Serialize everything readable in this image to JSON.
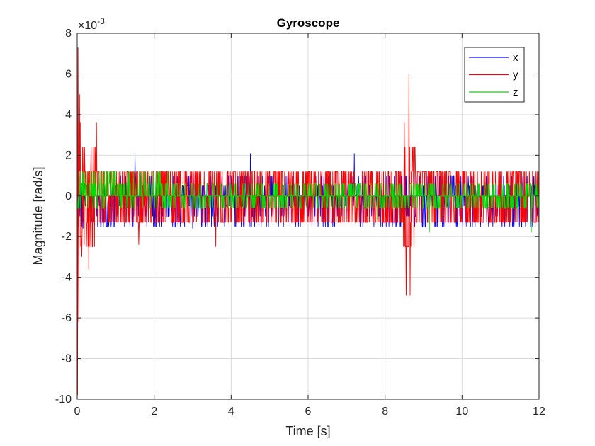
{
  "chart_data": {
    "type": "line",
    "title": "Gyroscope",
    "xlabel": "Time [s]",
    "ylabel": "Magnitude [rad/s]",
    "y_exponent_label": "×10",
    "y_exponent_power": "-3",
    "xlim": [
      0,
      12
    ],
    "ylim": [
      -10,
      8
    ],
    "y_scale_factor": 0.001,
    "x_ticks": [
      "0",
      "2",
      "4",
      "6",
      "8",
      "10",
      "12"
    ],
    "y_ticks": [
      "-10",
      "-8",
      "-6",
      "-4",
      "-2",
      "0",
      "2",
      "4",
      "6",
      "8"
    ],
    "grid": true,
    "legend_position": "top-right",
    "sample_interval_s": 0.01,
    "series": [
      {
        "name": "x",
        "color": "#0000ff",
        "quantization_levels": [
          -1.5,
          -1.0,
          -0.5,
          0.0,
          0.5,
          1.0,
          2.1
        ],
        "typical_range": [
          -1.5,
          1.0
        ],
        "spikes": [
          [
            1.5,
            2.1
          ],
          [
            4.5,
            2.1
          ],
          [
            7.2,
            2.1
          ],
          [
            0.15,
            -1.6
          ],
          [
            3.0,
            -1.6
          ]
        ]
      },
      {
        "name": "y",
        "color": "#ff0000",
        "quantization_levels": [
          -2.5,
          -1.3,
          0.0,
          1.2,
          2.4
        ],
        "typical_range": [
          -1.3,
          1.2
        ],
        "spikes": [
          [
            0.01,
            -9.8
          ],
          [
            0.02,
            7.3
          ],
          [
            0.04,
            -6.2
          ],
          [
            0.06,
            5.0
          ],
          [
            0.08,
            3.6
          ],
          [
            0.12,
            -3.0
          ],
          [
            0.18,
            -2.4
          ],
          [
            0.3,
            -3.6
          ],
          [
            0.5,
            3.6
          ],
          [
            1.6,
            -2.4
          ],
          [
            3.6,
            -2.5
          ],
          [
            8.5,
            3.6
          ],
          [
            8.55,
            -4.9
          ],
          [
            8.62,
            6.0
          ],
          [
            8.65,
            -4.9
          ],
          [
            8.7,
            2.4
          ],
          [
            8.6,
            -2.5
          ],
          [
            8.75,
            -2.5
          ]
        ]
      },
      {
        "name": "z",
        "color": "#00dd00",
        "quantization_levels": [
          -1.2,
          -0.6,
          0.0,
          0.6,
          1.2
        ],
        "segments": [
          {
            "x_range": [
              0.0,
              2.35
            ],
            "range": [
              -0.6,
              1.2
            ]
          },
          {
            "x_range": [
              2.35,
              12.0
            ],
            "range": [
              -0.6,
              0.6
            ]
          }
        ],
        "spikes": [
          [
            9.15,
            -1.8
          ],
          [
            11.8,
            -1.8
          ],
          [
            7.8,
            -1.2
          ]
        ]
      }
    ]
  }
}
